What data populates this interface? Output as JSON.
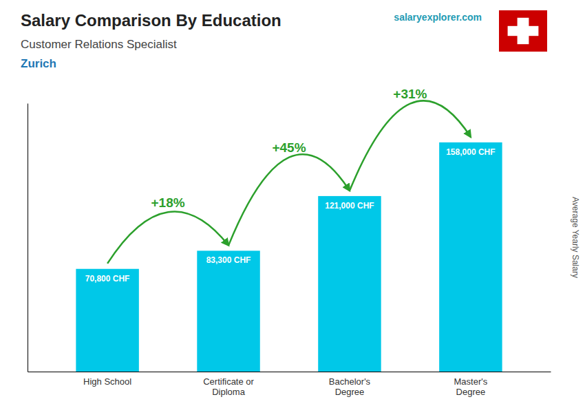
{
  "chart_data": {
    "type": "bar",
    "title": "Salary Comparison By Education",
    "subtitle": "Customer Relations Specialist",
    "location": "Zurich",
    "watermark": "salaryexplorer.com",
    "ylabel": "Average Yearly Salary",
    "categories": [
      "High School",
      "Certificate or\nDiploma",
      "Bachelor's\nDegree",
      "Master's\nDegree"
    ],
    "values": [
      70800,
      83300,
      121000,
      158000
    ],
    "value_labels": [
      "70,800 CHF",
      "83,300 CHF",
      "121,000 CHF",
      "158,000 CHF"
    ],
    "annotations": [
      "+18%",
      "+45%",
      "+31%"
    ],
    "color": "#00c8e8",
    "ylim": [
      0,
      185000
    ],
    "grid": false,
    "data_labels": true,
    "tick_labels": "x"
  }
}
